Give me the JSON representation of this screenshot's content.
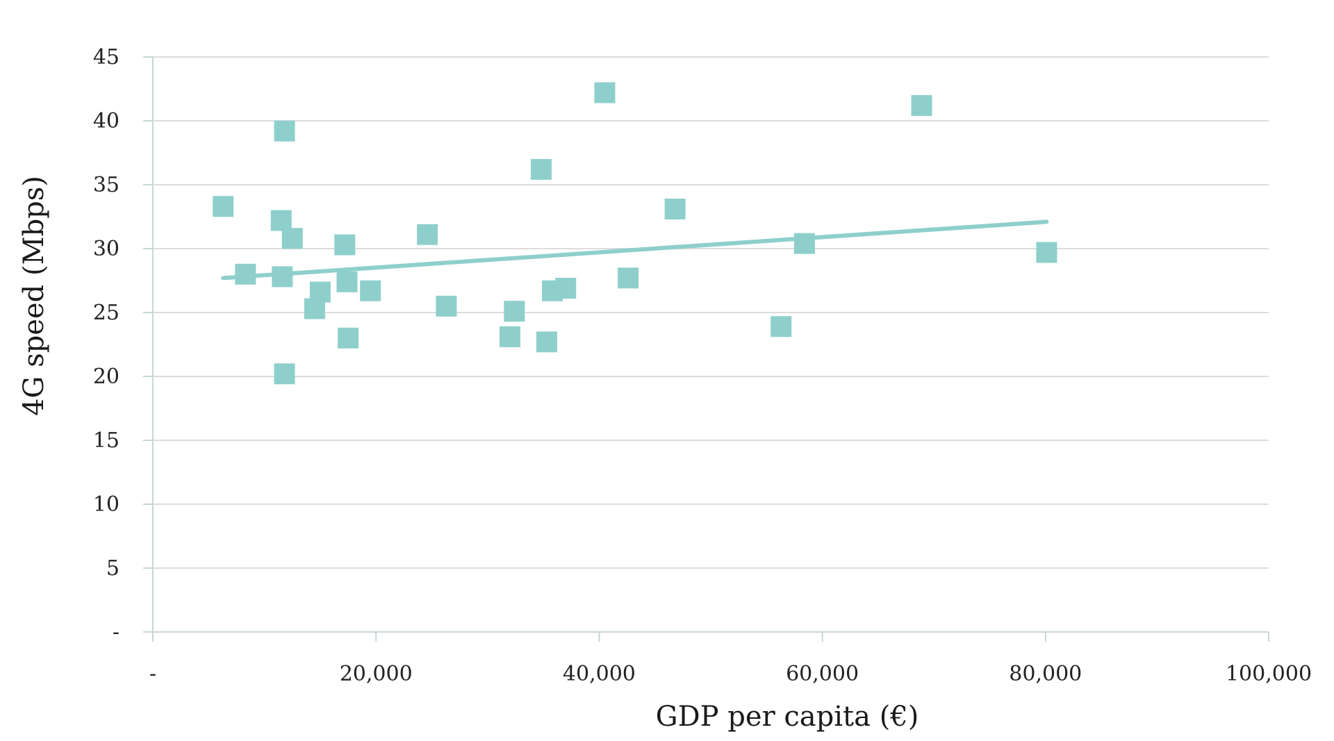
{
  "chart_data": {
    "type": "scatter",
    "title": "",
    "xlabel": "GDP per capita (€)",
    "ylabel": "4G speed (Mbps)",
    "xlim": [
      0,
      100000
    ],
    "ylim": [
      0,
      45
    ],
    "x_ticks": [
      0,
      20000,
      40000,
      60000,
      80000,
      100000
    ],
    "x_tick_labels": [
      "-",
      "20,000",
      "40,000",
      "60,000",
      "80,000",
      "100,000"
    ],
    "y_ticks": [
      0,
      5,
      10,
      15,
      20,
      25,
      30,
      35,
      40,
      45
    ],
    "y_tick_labels": [
      "-",
      "5",
      "10",
      "15",
      "20",
      "25",
      "30",
      "35",
      "40",
      "45"
    ],
    "grid": "horizontal",
    "legend": "none",
    "marker": "square",
    "color": "#8ecfcb",
    "points": [
      {
        "x": 6300,
        "y": 33.3
      },
      {
        "x": 8300,
        "y": 28.0
      },
      {
        "x": 11500,
        "y": 32.2
      },
      {
        "x": 11600,
        "y": 27.8
      },
      {
        "x": 11800,
        "y": 39.2
      },
      {
        "x": 11800,
        "y": 20.2
      },
      {
        "x": 12500,
        "y": 30.8
      },
      {
        "x": 14500,
        "y": 25.3
      },
      {
        "x": 15000,
        "y": 26.6
      },
      {
        "x": 17200,
        "y": 30.3
      },
      {
        "x": 17400,
        "y": 27.4
      },
      {
        "x": 17500,
        "y": 23.0
      },
      {
        "x": 19500,
        "y": 26.7
      },
      {
        "x": 24600,
        "y": 31.1
      },
      {
        "x": 26300,
        "y": 25.5
      },
      {
        "x": 32000,
        "y": 23.1
      },
      {
        "x": 32400,
        "y": 25.1
      },
      {
        "x": 34800,
        "y": 36.2
      },
      {
        "x": 35300,
        "y": 22.7
      },
      {
        "x": 35800,
        "y": 26.7
      },
      {
        "x": 37000,
        "y": 26.9
      },
      {
        "x": 40500,
        "y": 42.2
      },
      {
        "x": 42600,
        "y": 27.7
      },
      {
        "x": 46800,
        "y": 33.1
      },
      {
        "x": 56300,
        "y": 23.9
      },
      {
        "x": 58400,
        "y": 30.4
      },
      {
        "x": 68900,
        "y": 41.2
      },
      {
        "x": 80100,
        "y": 29.7
      }
    ],
    "trendline": {
      "type": "linear",
      "x": [
        6300,
        80100
      ],
      "y": [
        27.7,
        32.1
      ]
    }
  }
}
